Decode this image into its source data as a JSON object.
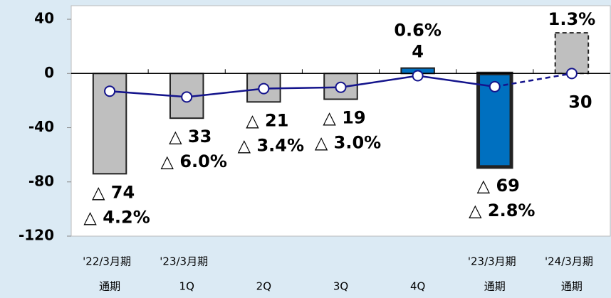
{
  "chart_data": {
    "type": "bar",
    "category_groups": [
      "'22/3月期",
      "'23/3月期",
      null,
      null,
      null,
      "'23/3月期",
      "'24/3月期"
    ],
    "categories": [
      "通期",
      "1Q",
      "2Q",
      "3Q",
      "4Q",
      "通期",
      "通期"
    ],
    "values": [
      -74,
      -33,
      -21,
      -19,
      4,
      -69,
      30
    ],
    "value_labels": [
      "△ 74",
      "△ 33",
      "△ 21",
      "△ 19",
      "4",
      "△ 69",
      "30"
    ],
    "bar_colors": [
      "#bfbfbf",
      "#bfbfbf",
      "#bfbfbf",
      "#bfbfbf",
      "#0070c0",
      "#0070c0",
      "#bfbfbf"
    ],
    "bar_styles": [
      "solid",
      "solid",
      "solid",
      "solid",
      "solid",
      "solid",
      "dashed"
    ],
    "line": {
      "color": "#14148c",
      "axis": "y2",
      "values": [
        -4.2,
        -6.0,
        -3.4,
        -3.0,
        0.6,
        -2.8,
        1.3
      ],
      "value_labels": [
        "△ 4.2%",
        "△ 6.0%",
        "△ 3.4%",
        "△ 3.0%",
        "0.6%",
        "△ 2.8%",
        "1.3%"
      ],
      "styles": [
        "solid",
        "solid",
        "solid",
        "solid",
        "solid",
        "solid",
        "dashed"
      ]
    },
    "ylim": [
      -120,
      50
    ],
    "yticks": [
      40,
      0,
      -40,
      -80,
      -120
    ],
    "y2lim": [
      -49.3,
      22.4
    ]
  }
}
